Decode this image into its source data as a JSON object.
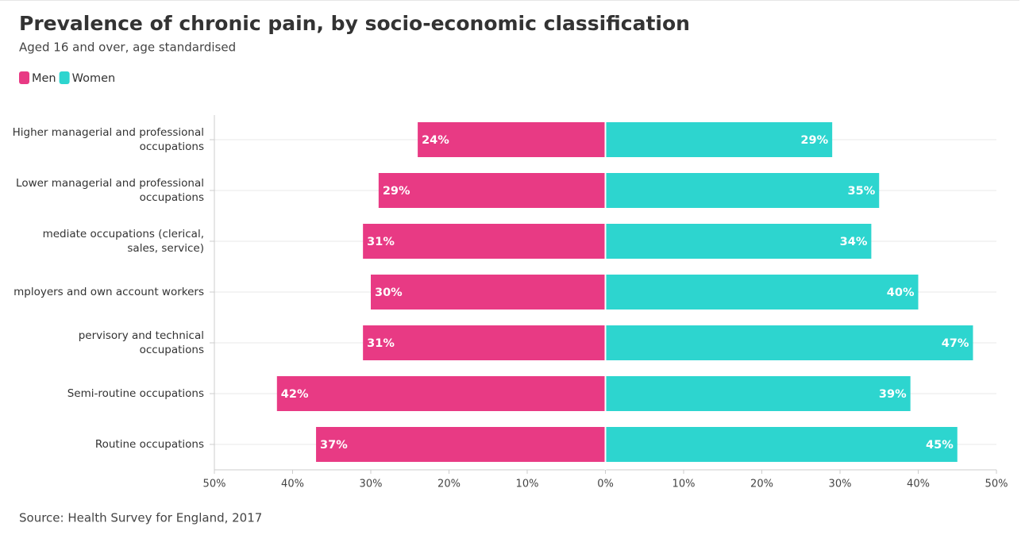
{
  "chart_data": {
    "type": "bar",
    "title": "Prevalence of chronic pain, by socio-economic classification",
    "subtitle": "Aged 16 and over, age standardised",
    "source": "Source: Health Survey for England, 2017",
    "categories": [
      "Higher managerial and professional occupations",
      "Lower managerial and professional occupations",
      "mediate occupations (clerical, sales, service)",
      "mployers and own account workers",
      "pervisory and technical occupations",
      "Semi-routine occupations",
      "Routine occupations"
    ],
    "series": [
      {
        "name": "Men",
        "color": "#e83a84",
        "values": [
          -24,
          -29,
          -31,
          -30,
          -31,
          -42,
          -37
        ],
        "value_labels": [
          "24%",
          "29%",
          "31%",
          "30%",
          "31%",
          "42%",
          "37%"
        ]
      },
      {
        "name": "Women",
        "color": "#2dd5cf",
        "values": [
          29,
          35,
          34,
          40,
          47,
          39,
          45
        ],
        "value_labels": [
          "29%",
          "35%",
          "34%",
          "40%",
          "47%",
          "39%",
          "45%"
        ]
      }
    ],
    "xlim": [
      -50,
      50
    ],
    "xticks": [
      {
        "value": -50,
        "label": "50%"
      },
      {
        "value": -40,
        "label": "40%"
      },
      {
        "value": -30,
        "label": "30%"
      },
      {
        "value": -20,
        "label": "20%"
      },
      {
        "value": -10,
        "label": "10%"
      },
      {
        "value": 0,
        "label": "0%"
      },
      {
        "value": 10,
        "label": "10%"
      },
      {
        "value": 20,
        "label": "20%"
      },
      {
        "value": 30,
        "label": "30%"
      },
      {
        "value": 40,
        "label": "40%"
      },
      {
        "value": 50,
        "label": "50%"
      }
    ],
    "grid": true,
    "legend": "top-left"
  }
}
